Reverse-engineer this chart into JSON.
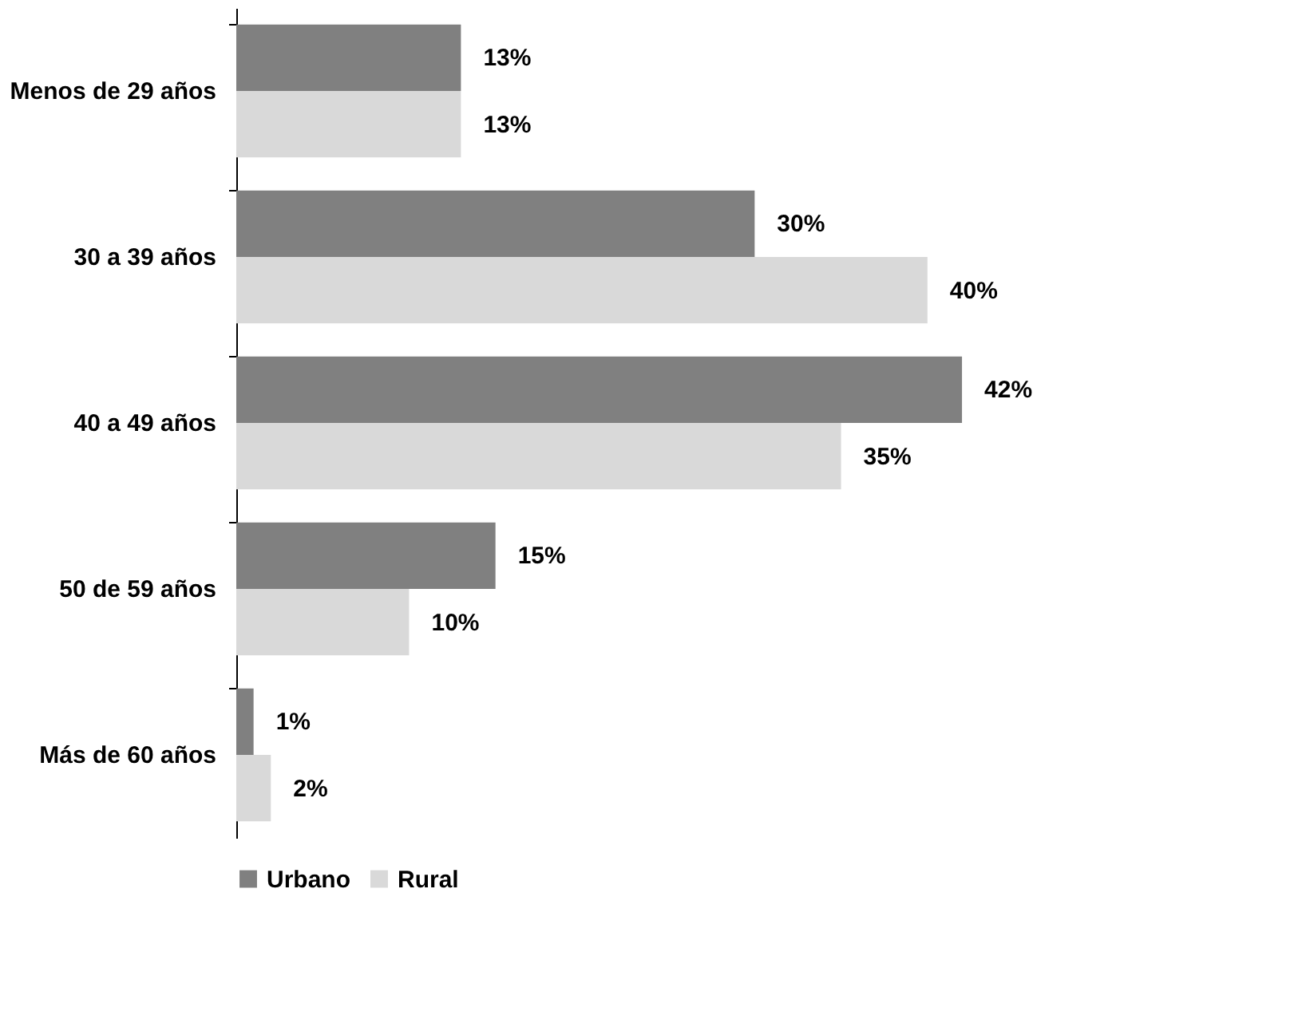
{
  "chart_data": {
    "type": "bar",
    "orientation": "horizontal",
    "categories": [
      "Menos de 29 años",
      "30 a 39 años",
      "40 a 49 años",
      "50 de 59 años",
      "Más de 60 años"
    ],
    "series": [
      {
        "name": "Urbano",
        "color": "#808080",
        "values": [
          13,
          30,
          42,
          15,
          1
        ],
        "value_labels": [
          "13%",
          "30%",
          "42%",
          "15%",
          "1%"
        ]
      },
      {
        "name": "Rural",
        "color": "#d9d9d9",
        "values": [
          13,
          40,
          35,
          10,
          2
        ],
        "value_labels": [
          "13%",
          "40%",
          "35%",
          "10%",
          "2%"
        ]
      }
    ],
    "legend": "bottom",
    "tick_labels": "y"
  }
}
